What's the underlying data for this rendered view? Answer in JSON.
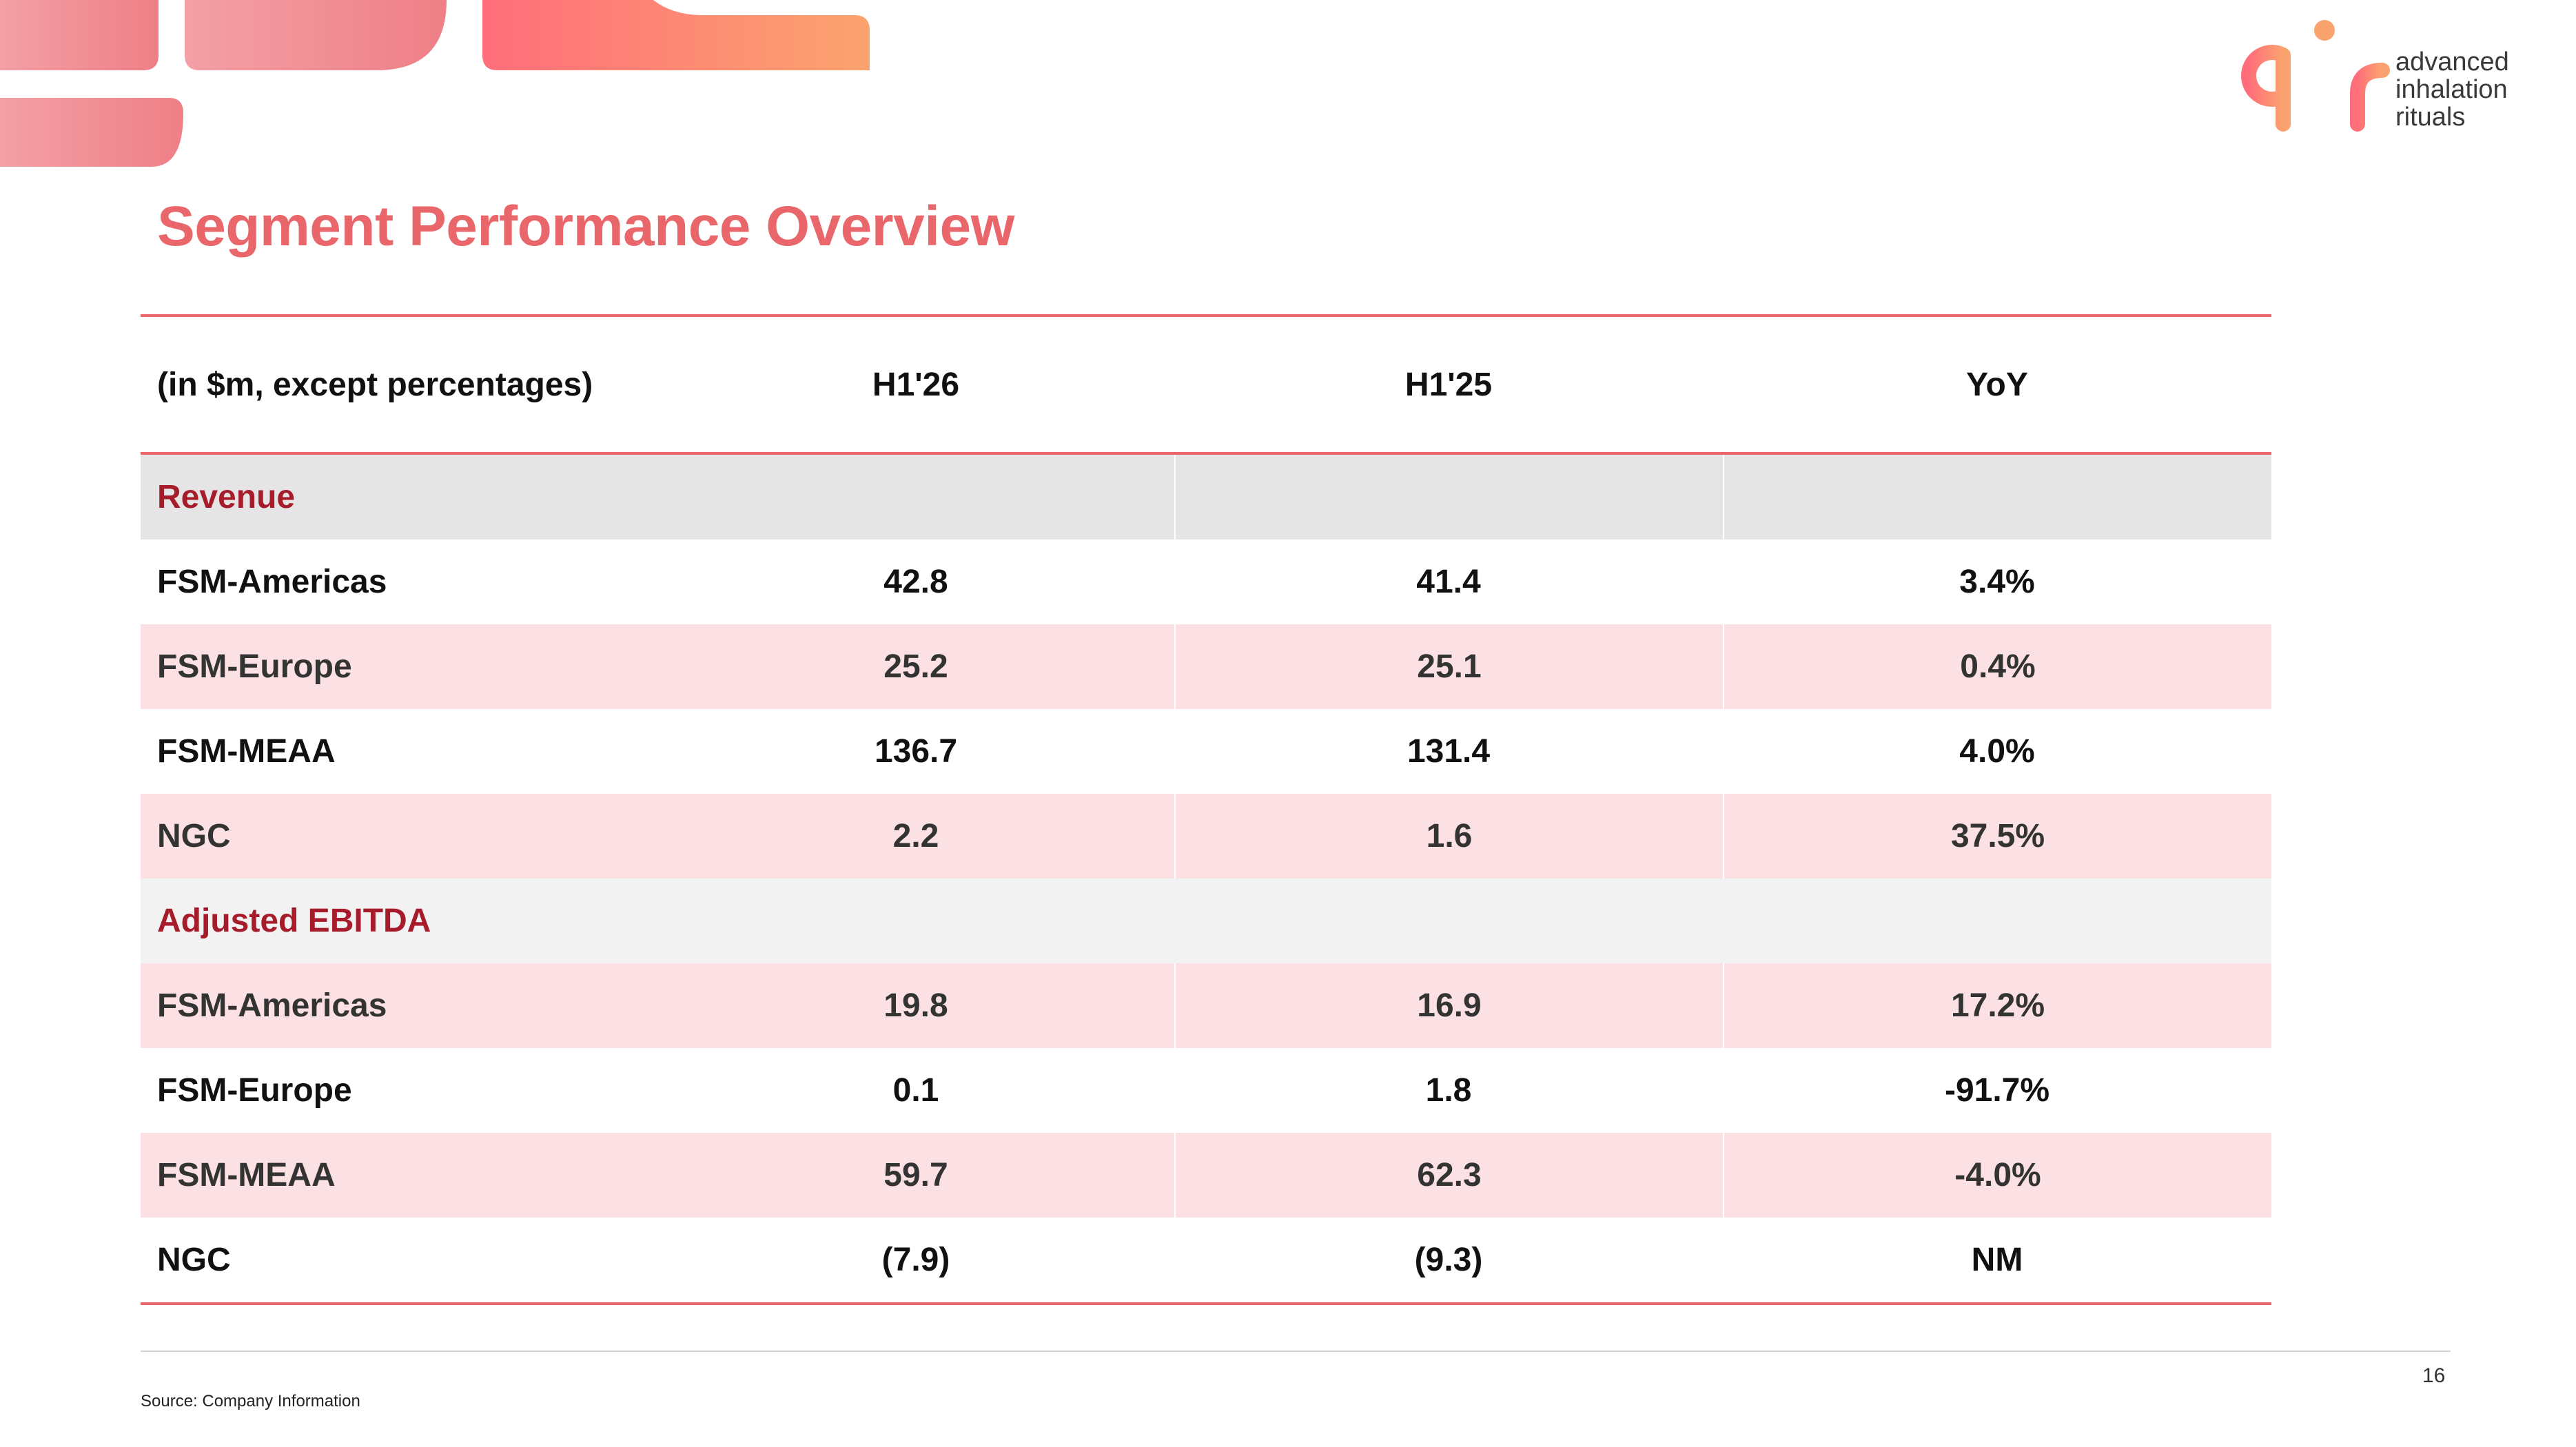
{
  "brand": {
    "logo_letters": "air",
    "tagline": [
      "advanced",
      "inhalation",
      "rituals"
    ],
    "colors": {
      "primary": "#e9666b",
      "gradient_start": "#f08a90",
      "gradient_end": "#fba36f",
      "section_label": "#a61c2b",
      "row_highlight": "#fbe1e4"
    }
  },
  "slide": {
    "title": "Segment Performance Overview",
    "page_number": "16",
    "source": "Source: Company Information"
  },
  "table": {
    "headers": [
      "(in $m, except percentages)",
      "H1'26",
      "H1'25",
      "YoY"
    ],
    "sections": [
      {
        "label": "Revenue",
        "rows": [
          {
            "name": "FSM-Americas",
            "h1_26": "42.8",
            "h1_25": "41.4",
            "yoy": "3.4%"
          },
          {
            "name": "FSM-Europe",
            "h1_26": "25.2",
            "h1_25": "25.1",
            "yoy": "0.4%"
          },
          {
            "name": "FSM-MEAA",
            "h1_26": "136.7",
            "h1_25": "131.4",
            "yoy": "4.0%"
          },
          {
            "name": "NGC",
            "h1_26": "2.2",
            "h1_25": "1.6",
            "yoy": "37.5%"
          }
        ]
      },
      {
        "label": "Adjusted EBITDA",
        "rows": [
          {
            "name": "FSM-Americas",
            "h1_26": "19.8",
            "h1_25": "16.9",
            "yoy": "17.2%"
          },
          {
            "name": "FSM-Europe",
            "h1_26": "0.1",
            "h1_25": "1.8",
            "yoy": "-91.7%"
          },
          {
            "name": "FSM-MEAA",
            "h1_26": "59.7",
            "h1_25": "62.3",
            "yoy": "-4.0%"
          },
          {
            "name": "NGC",
            "h1_26": "(7.9)",
            "h1_25": "(9.3)",
            "yoy": "NM"
          }
        ]
      }
    ]
  }
}
